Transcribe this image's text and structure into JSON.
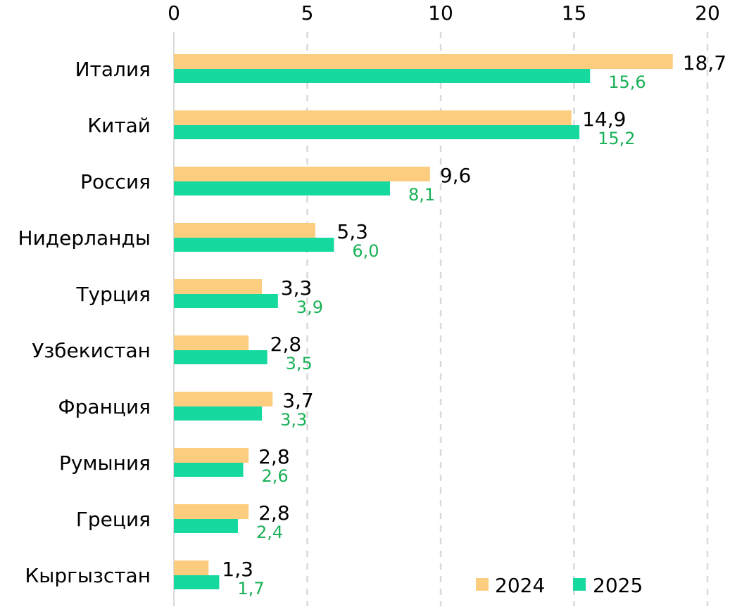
{
  "chart_data": {
    "type": "bar",
    "orientation": "horizontal",
    "title": "",
    "xlabel": "",
    "ylabel": "",
    "xlim": [
      0,
      20
    ],
    "x_ticks": [
      "0",
      "5",
      "10",
      "15",
      "20"
    ],
    "x_tick_values": [
      0,
      5,
      10,
      15,
      20
    ],
    "grid": true,
    "legend_position": "bottom-right",
    "categories": [
      "Италия",
      "Китай",
      "Россия",
      "Нидерланды",
      "Турция",
      "Узбекистан",
      "Франция",
      "Румыния",
      "Греция",
      "Кыргызстан"
    ],
    "series": [
      {
        "name": "2024",
        "color": "#FCCD7E",
        "label_color": "#000000",
        "values": [
          18.7,
          14.9,
          9.6,
          5.3,
          3.3,
          2.8,
          3.7,
          2.8,
          2.8,
          1.3
        ],
        "labels": [
          "18,7",
          "14,9",
          "9,6",
          "5,3",
          "3,3",
          "2,8",
          "3,7",
          "2,8",
          "2,8",
          "1,3"
        ]
      },
      {
        "name": "2025",
        "color": "#16D9A0",
        "label_color": "#1AB057",
        "values": [
          15.6,
          15.2,
          8.1,
          6.0,
          3.9,
          3.5,
          3.3,
          2.6,
          2.4,
          1.7
        ],
        "labels": [
          "15,6",
          "15,2",
          "8,1",
          "6,0",
          "3,9",
          "3,5",
          "3,3",
          "2,6",
          "2,4",
          "1,7"
        ]
      }
    ]
  }
}
